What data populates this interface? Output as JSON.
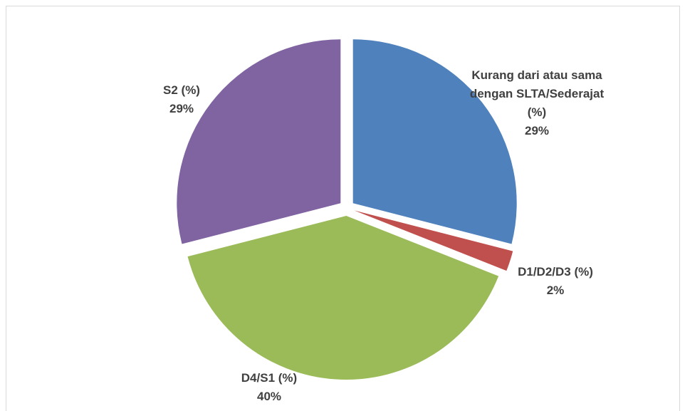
{
  "chart_data": {
    "type": "pie",
    "categories": [
      "Kurang dari atau sama dengan SLTA/Sederajat (%)",
      "D1/D2/D3 (%)",
      "D4/S1 (%)",
      "S2 (%)"
    ],
    "values": [
      29,
      2,
      40,
      29
    ],
    "value_labels": [
      "29%",
      "2%",
      "40%",
      "29%"
    ],
    "colors": [
      "#4f81bd",
      "#c0504d",
      "#9bbb59",
      "#8064a2"
    ]
  }
}
